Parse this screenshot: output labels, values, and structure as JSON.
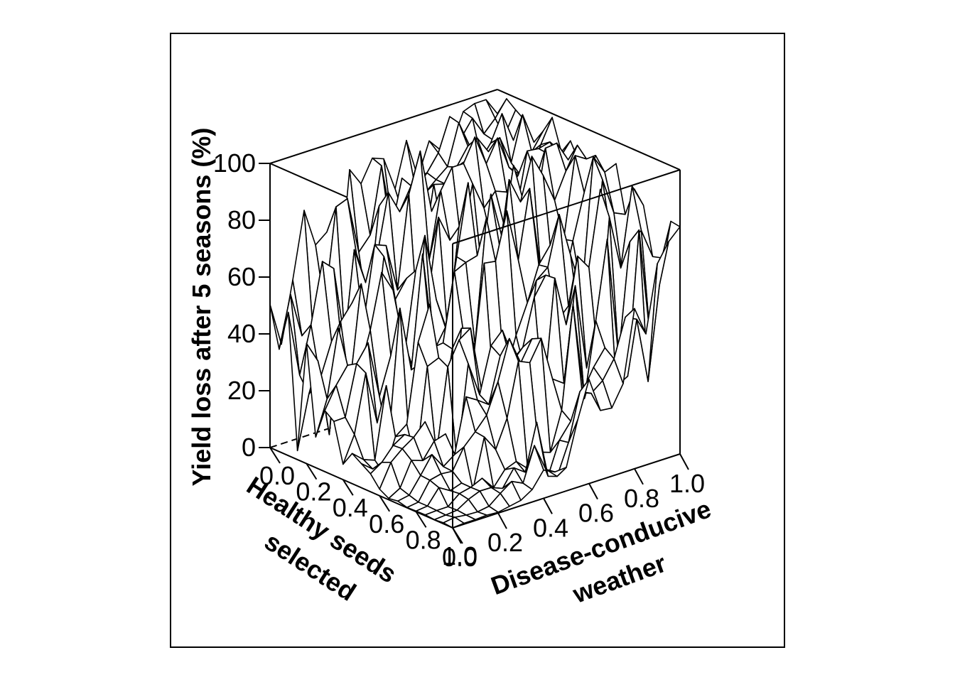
{
  "chart_data": {
    "type": "surface3d",
    "title": "",
    "xlabel": [
      "Healthy seeds",
      "selected"
    ],
    "ylabel": [
      "Disease-conducive",
      "weather"
    ],
    "zlabel": "Yield loss after 5 seasons (%)",
    "x_ticks": [
      "0.0",
      "0.2",
      "0.4",
      "0.6",
      "0.8",
      "1.0"
    ],
    "y_ticks": [
      "0.0",
      "0.2",
      "0.4",
      "0.6",
      "0.8",
      "1.0"
    ],
    "z_ticks": [
      "0",
      "20",
      "40",
      "60",
      "80",
      "100"
    ],
    "xlim": [
      0,
      1
    ],
    "ylim": [
      0,
      1
    ],
    "zlim": [
      0,
      100
    ],
    "grid_size": [
      21,
      21
    ],
    "surface_description": "Noisy wireframe surface: yield loss near 0 at high healthy-seed selection and low disease-conducive weather, rising to 60-100 for low seed selection and high disease-conducive weather; approximate control values below (z in %, rows = healthy seeds selected 0..1, columns = disease-conducive weather 0..1)",
    "z_control_x": [
      0,
      0.25,
      0.5,
      0.75,
      1.0
    ],
    "z_control_y": [
      0,
      0.25,
      0.5,
      0.75,
      1.0
    ],
    "z_control": [
      [
        42,
        60,
        80,
        90,
        95
      ],
      [
        20,
        45,
        70,
        85,
        92
      ],
      [
        5,
        25,
        55,
        75,
        88
      ],
      [
        1,
        8,
        30,
        60,
        80
      ],
      [
        0,
        1,
        10,
        35,
        55
      ]
    ]
  }
}
